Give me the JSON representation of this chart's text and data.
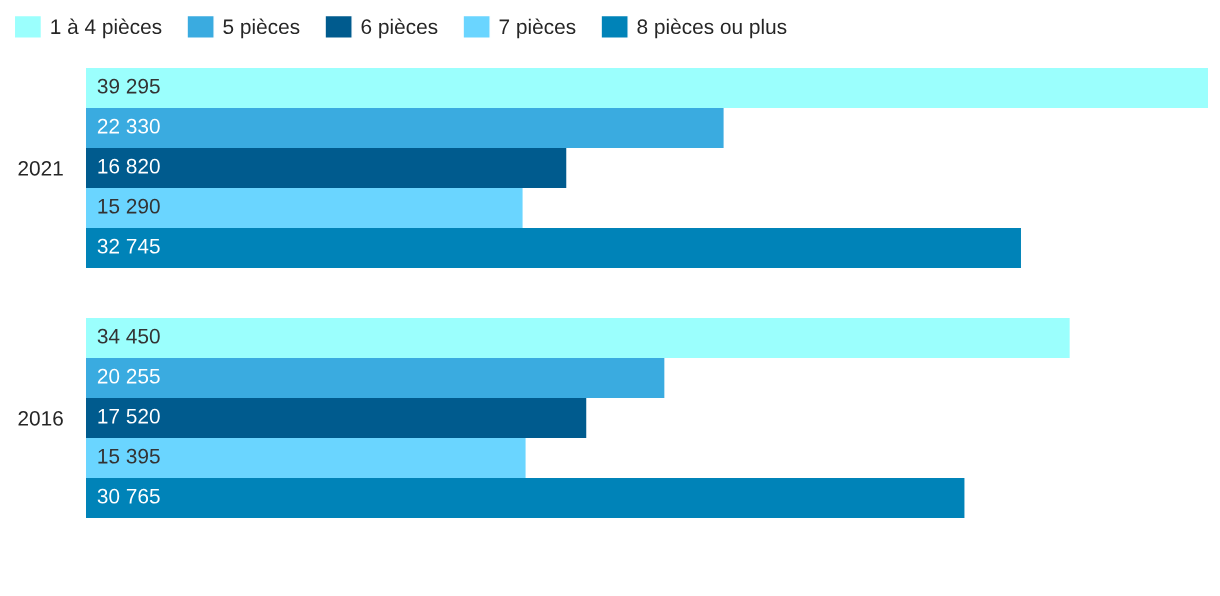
{
  "chart_data": {
    "type": "bar",
    "orientation": "horizontal",
    "categories": [
      "2021",
      "2016"
    ],
    "series": [
      {
        "name": "1 à 4 pièces",
        "color": "#9bfffd",
        "values": [
          39295,
          34450
        ],
        "value_labels": [
          "39 295",
          "34 450"
        ]
      },
      {
        "name": "5 pièces",
        "color": "#3aabe0",
        "values": [
          22330,
          20255
        ],
        "value_labels": [
          "22 330",
          "20 255"
        ]
      },
      {
        "name": "6 pièces",
        "color": "#005b8e",
        "values": [
          16820,
          17520
        ],
        "value_labels": [
          "16 820",
          "17 520"
        ]
      },
      {
        "name": "7 pièces",
        "color": "#6ad5ff",
        "values": [
          15290,
          15395
        ],
        "value_labels": [
          "15 290",
          "15 395"
        ]
      },
      {
        "name": "8 pièces ou plus",
        "color": "#0083b8",
        "values": [
          32745,
          30765
        ],
        "value_labels": [
          "32 745",
          "30 765"
        ]
      }
    ],
    "xlim": [
      0,
      39295
    ],
    "tick_labels": "y",
    "grid": false,
    "legend": "top left"
  }
}
